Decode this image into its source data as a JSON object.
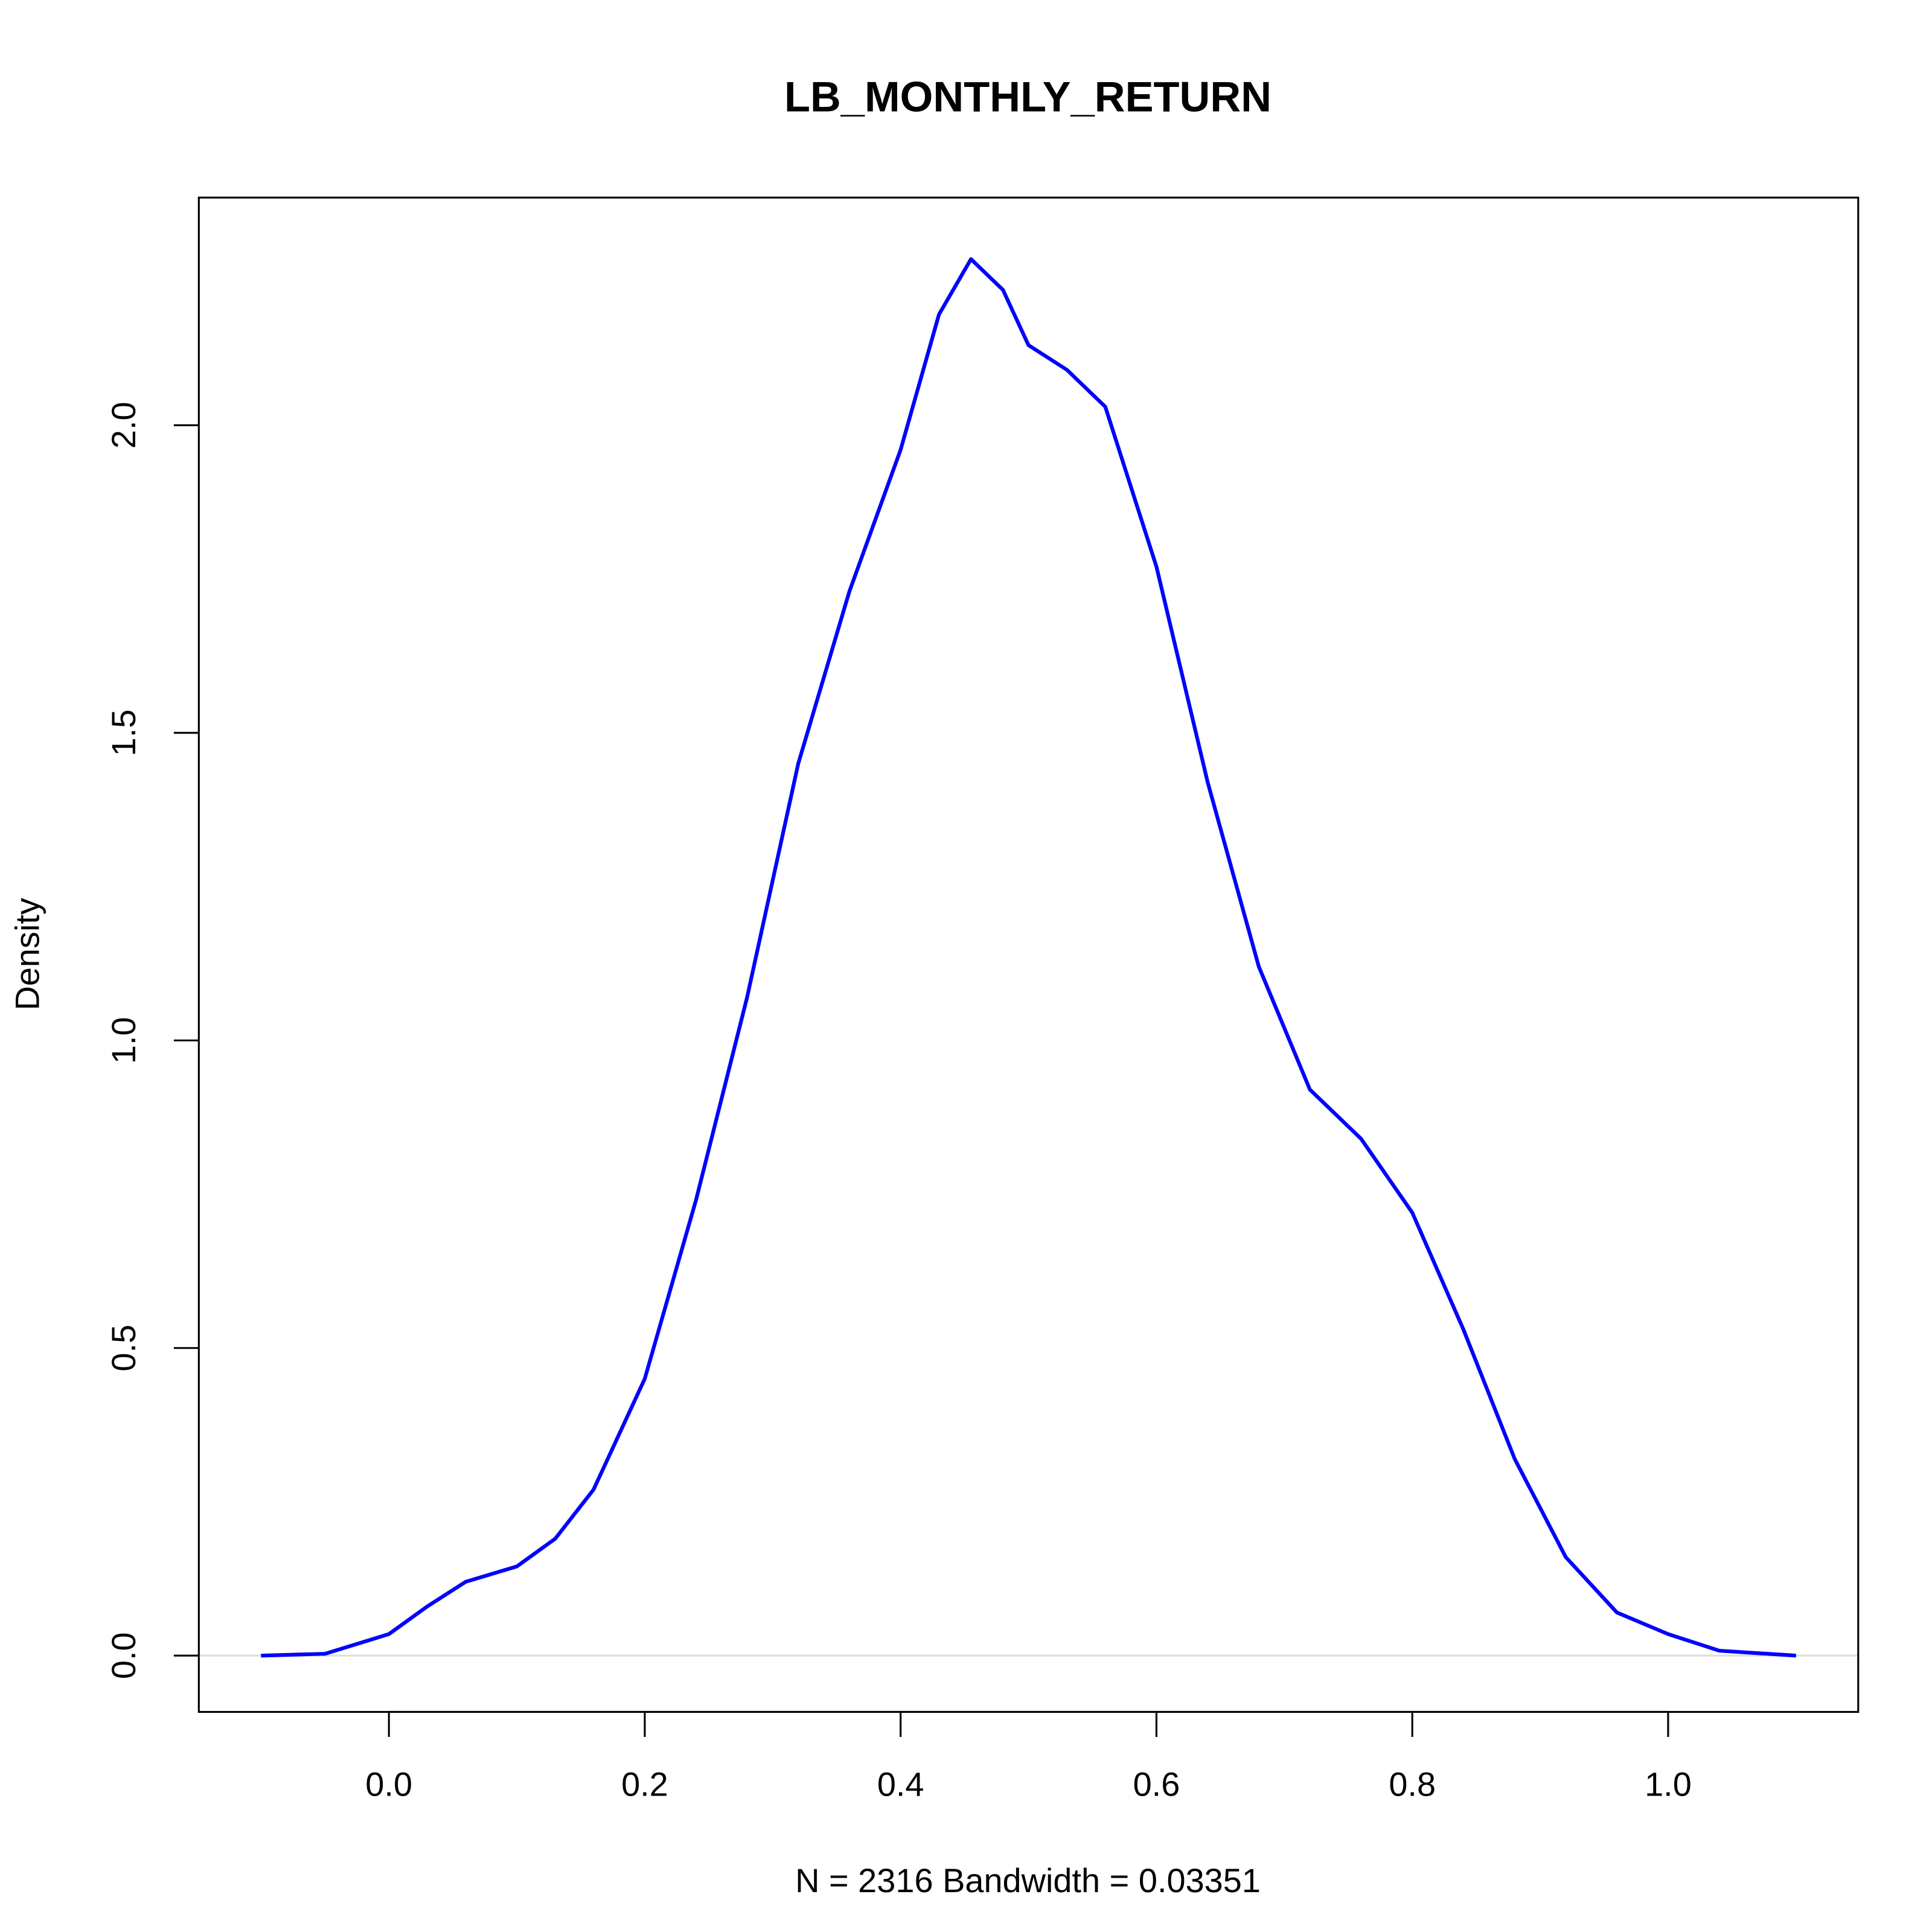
{
  "chart_data": {
    "type": "line",
    "title": "LB_MONTHLY_RETURN",
    "x_label": "N = 2316   Bandwidth = 0.03351",
    "y_label": "Density",
    "x": [
      -0.1,
      -0.05,
      0.0,
      0.03,
      0.06,
      0.1,
      0.13,
      0.16,
      0.2,
      0.24,
      0.28,
      0.32,
      0.36,
      0.4,
      0.43,
      0.455,
      0.48,
      0.5,
      0.53,
      0.56,
      0.6,
      0.64,
      0.68,
      0.72,
      0.76,
      0.8,
      0.84,
      0.88,
      0.92,
      0.96,
      1.0,
      1.04,
      1.1
    ],
    "series": [
      {
        "name": "density",
        "color": "#0000ff",
        "values": [
          0.0,
          0.003,
          0.035,
          0.08,
          0.12,
          0.145,
          0.19,
          0.27,
          0.45,
          0.74,
          1.07,
          1.45,
          1.73,
          1.96,
          2.18,
          2.27,
          2.22,
          2.13,
          2.09,
          2.03,
          1.77,
          1.42,
          1.12,
          0.92,
          0.84,
          0.72,
          0.53,
          0.32,
          0.16,
          0.07,
          0.035,
          0.008,
          0.0
        ]
      }
    ],
    "xlim": [
      -0.1486,
      1.1486
    ],
    "ylim": [
      -0.0915,
      2.37
    ],
    "xticks": [
      {
        "value": 0,
        "label": "0.0"
      },
      0.2,
      0.4,
      0.6,
      0.8,
      {
        "value": 1,
        "label": "1.0"
      }
    ],
    "yticks": [
      {
        "value": 0,
        "label": "0.0"
      },
      0.5,
      {
        "value": 1,
        "label": "1.0"
      },
      1.5,
      {
        "value": 2,
        "label": "2.0"
      }
    ],
    "zero_line": true,
    "zero_line_color": "#dddddd"
  }
}
